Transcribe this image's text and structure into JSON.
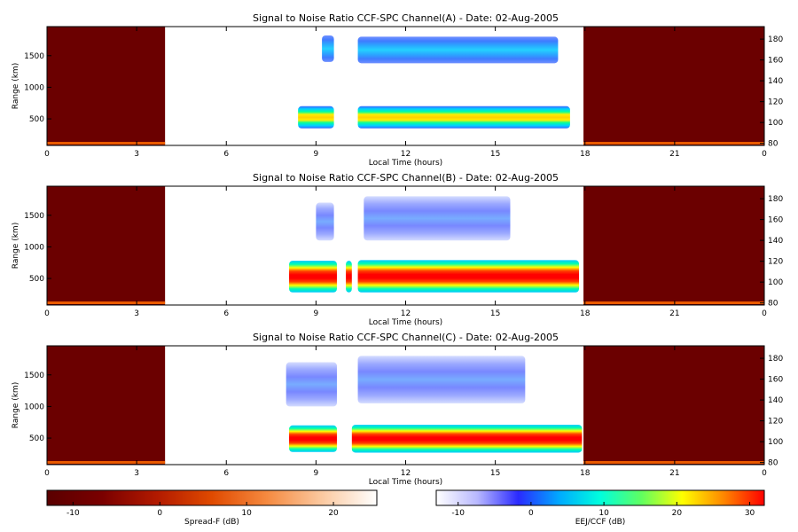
{
  "chart_data": [
    {
      "type": "heatmap",
      "title": "Signal to Noise Ratio CCF-SPC Channel(A) - Date: 02-Aug-2005",
      "xlabel": "Local Time (hours)",
      "ylabel": "Range (km)",
      "xlim": [
        0,
        24
      ],
      "ylim": [
        80,
        1960
      ],
      "y2lim": [
        78,
        192
      ],
      "x_ticks": [
        "0",
        "3",
        "6",
        "9",
        "12",
        "15",
        "18",
        "21",
        "0"
      ],
      "y_ticks": [
        "500",
        "1000",
        "1500"
      ],
      "y2_ticks": [
        "80",
        "100",
        "120",
        "140",
        "160",
        "180"
      ],
      "spreadf_ranges_hours": [
        [
          0,
          3.95
        ],
        [
          17.95,
          24
        ]
      ],
      "blobs": [
        {
          "t0": 10.4,
          "t1": 17.5,
          "r0": 350,
          "r1": 700,
          "core": 0.6,
          "kind": "low"
        },
        {
          "t0": 8.4,
          "t1": 9.6,
          "r0": 350,
          "r1": 700,
          "core": 0.5,
          "kind": "low"
        },
        {
          "t0": 10.4,
          "t1": 17.1,
          "r0": 1380,
          "r1": 1800,
          "core": 0.5,
          "kind": "blue"
        },
        {
          "t0": 9.2,
          "t1": 9.6,
          "r0": 1400,
          "r1": 1820,
          "core": 0.45,
          "kind": "blue"
        }
      ]
    },
    {
      "type": "heatmap",
      "title": "Signal to Noise Ratio CCF-SPC Channel(B) - Date: 02-Aug-2005",
      "xlabel": "Local Time (hours)",
      "ylabel": "Range (km)",
      "xlim": [
        0,
        24
      ],
      "ylim": [
        80,
        1960
      ],
      "y2lim": [
        78,
        192
      ],
      "x_ticks": [
        "0",
        "3",
        "6",
        "9",
        "12",
        "15",
        "18",
        "21",
        "0"
      ],
      "y_ticks": [
        "500",
        "1000",
        "1500"
      ],
      "y2_ticks": [
        "80",
        "100",
        "120",
        "140",
        "160",
        "180"
      ],
      "spreadf_ranges_hours": [
        [
          0,
          3.95
        ],
        [
          17.95,
          24
        ]
      ],
      "blobs": [
        {
          "t0": 8.1,
          "t1": 9.7,
          "r0": 280,
          "r1": 780,
          "core": 0.95,
          "kind": "hot"
        },
        {
          "t0": 10.0,
          "t1": 10.2,
          "r0": 280,
          "r1": 780,
          "core": 0.95,
          "kind": "hot"
        },
        {
          "t0": 10.4,
          "t1": 17.8,
          "r0": 280,
          "r1": 790,
          "core": 0.95,
          "kind": "hot"
        },
        {
          "t0": 10.6,
          "t1": 15.5,
          "r0": 1100,
          "r1": 1800,
          "core": 0.35,
          "kind": "sparse"
        },
        {
          "t0": 9.0,
          "t1": 9.6,
          "r0": 1100,
          "r1": 1700,
          "core": 0.3,
          "kind": "sparse"
        }
      ]
    },
    {
      "type": "heatmap",
      "title": "Signal to Noise Ratio CCF-SPC Channel(C) - Date: 02-Aug-2005",
      "xlabel": "Local Time (hours)",
      "ylabel": "Range (km)",
      "xlim": [
        0,
        24
      ],
      "ylim": [
        80,
        1960
      ],
      "y2lim": [
        78,
        192
      ],
      "x_ticks": [
        "0",
        "3",
        "6",
        "9",
        "12",
        "15",
        "18",
        "21",
        "0"
      ],
      "y_ticks": [
        "500",
        "1000",
        "1500"
      ],
      "y2_ticks": [
        "80",
        "100",
        "120",
        "140",
        "160",
        "180"
      ],
      "spreadf_ranges_hours": [
        [
          0,
          3.95
        ],
        [
          17.95,
          24
        ]
      ],
      "blobs": [
        {
          "t0": 8.1,
          "t1": 9.7,
          "r0": 280,
          "r1": 700,
          "core": 0.95,
          "kind": "hot"
        },
        {
          "t0": 10.2,
          "t1": 17.9,
          "r0": 270,
          "r1": 710,
          "core": 0.95,
          "kind": "hot"
        },
        {
          "t0": 10.4,
          "t1": 16.0,
          "r0": 1050,
          "r1": 1800,
          "core": 0.35,
          "kind": "sparse"
        },
        {
          "t0": 8.0,
          "t1": 9.7,
          "r0": 1000,
          "r1": 1700,
          "core": 0.3,
          "kind": "sparse"
        }
      ]
    }
  ],
  "colorbars": [
    {
      "label": "Spread-F (dB)",
      "range": [
        -13,
        25
      ],
      "ticks": [
        "-10",
        "0",
        "10",
        "20"
      ],
      "tick_values": [
        -10,
        0,
        10,
        20
      ],
      "stops": [
        "#5a0000",
        "#7a0000",
        "#b21a00",
        "#e04a00",
        "#f58a40",
        "#fbc9a0",
        "#ffffff"
      ]
    },
    {
      "label": "EEJ/CCF (dB)",
      "range": [
        -13,
        32
      ],
      "ticks": [
        "-10",
        "0",
        "10",
        "20",
        "30"
      ],
      "tick_values": [
        -10,
        0,
        10,
        20,
        30
      ],
      "stops": [
        "#ffffff",
        "#b8b8ff",
        "#2a2aff",
        "#00aaff",
        "#00ffdd",
        "#60ff60",
        "#ffff00",
        "#ff8800",
        "#ff0000"
      ]
    }
  ],
  "colors": {
    "spreadf_background": "#6b0000",
    "spreadf_baseline": "#ff6a00"
  }
}
